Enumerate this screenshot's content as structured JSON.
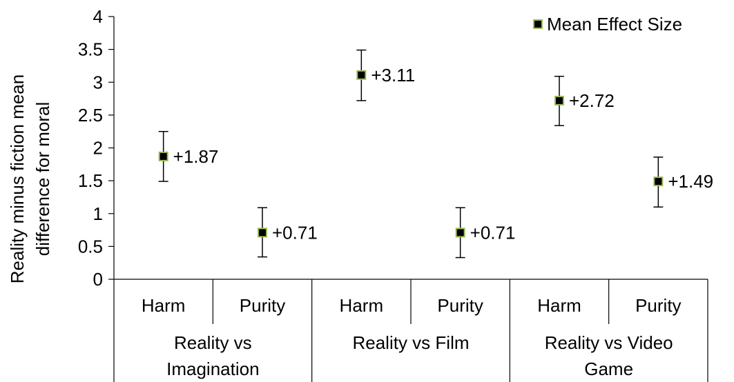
{
  "chart_data": {
    "type": "scatter",
    "title": "",
    "ylabel_lines": [
      "Reality minus fiction mean",
      "difference for moral"
    ],
    "ylim": [
      0,
      4
    ],
    "yticks": [
      0,
      0.5,
      1,
      1.5,
      2,
      2.5,
      3,
      3.5,
      4
    ],
    "ytick_labels": [
      "0",
      "0.5",
      "1",
      "1.5",
      "2",
      "2.5",
      "3",
      "3.5",
      "4"
    ],
    "groups": [
      {
        "label_lines": [
          "Reality vs",
          "Imagination"
        ],
        "categories": [
          "Harm",
          "Purity"
        ]
      },
      {
        "label_lines": [
          "Reality vs Film"
        ],
        "categories": [
          "Harm",
          "Purity"
        ]
      },
      {
        "label_lines": [
          "Reality vs Video",
          "Game"
        ],
        "categories": [
          "Harm",
          "Purity"
        ]
      }
    ],
    "series": [
      {
        "name": "Mean Effect Size",
        "values": [
          1.87,
          0.71,
          3.11,
          0.71,
          2.72,
          1.49
        ],
        "error_low": [
          1.49,
          0.34,
          2.72,
          0.33,
          2.34,
          1.1
        ],
        "error_high": [
          2.25,
          1.09,
          3.49,
          1.09,
          3.09,
          1.86
        ],
        "labels": [
          "+1.87",
          "+0.71",
          "+3.11",
          "+0.71",
          "+2.72",
          "+1.49"
        ],
        "marker_color": "#000000",
        "marker_edge_color": "#9bbb59"
      }
    ],
    "legend_position": "top-right",
    "grid": false
  }
}
